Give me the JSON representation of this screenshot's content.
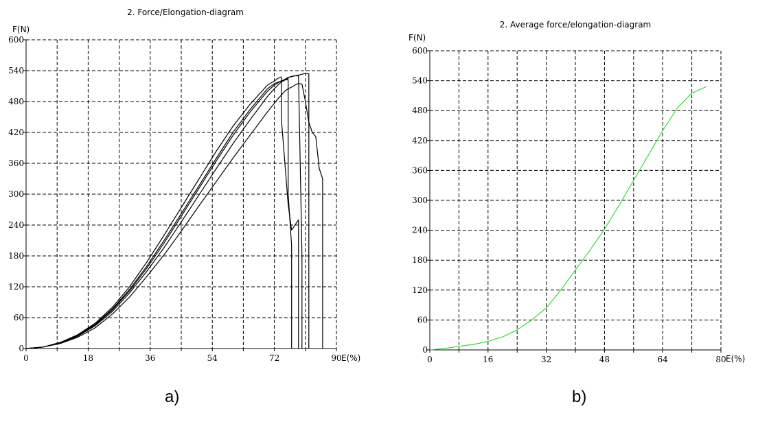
{
  "panels": {
    "a_label": "a)",
    "b_label": "b)"
  },
  "chart_data": [
    {
      "type": "line",
      "title": "2.  Force/Elongation-diagram",
      "xlabel": "E(%)",
      "ylabel": "F(N)",
      "xlim": [
        0,
        90
      ],
      "ylim": [
        0,
        600
      ],
      "xticks": [
        0,
        18,
        36,
        54,
        72,
        90
      ],
      "yticks": [
        0,
        60,
        120,
        180,
        240,
        300,
        360,
        420,
        480,
        540,
        600
      ],
      "grid": true,
      "line_color": "#000000",
      "series": [
        {
          "x": [
            0,
            5,
            10,
            15,
            20,
            25,
            30,
            35,
            40,
            45,
            50,
            55,
            60,
            65,
            70,
            73,
            75,
            76,
            76,
            77,
            78,
            78.5,
            79,
            79,
            80,
            81,
            82,
            83,
            84,
            85,
            86,
            86,
            86
          ],
          "y": [
            0,
            3,
            10,
            22,
            40,
            67,
            100,
            140,
            182,
            228,
            276,
            323,
            370,
            415,
            460,
            485,
            500,
            505,
            505,
            508,
            512,
            514,
            515,
            515,
            514,
            480,
            440,
            420,
            412,
            350,
            330,
            290,
            0
          ]
        },
        {
          "x": [
            0,
            5,
            10,
            15,
            20,
            25,
            30,
            35,
            40,
            45,
            50,
            55,
            60,
            65,
            70,
            72,
            74,
            76,
            76,
            78,
            80,
            81,
            82,
            82,
            82
          ],
          "y": [
            0,
            3,
            11,
            24,
            44,
            72,
            108,
            150,
            196,
            246,
            297,
            348,
            398,
            445,
            490,
            505,
            518,
            525,
            527,
            530,
            533,
            535,
            534,
            180,
            0
          ]
        },
        {
          "x": [
            0,
            5,
            10,
            15,
            20,
            25,
            30,
            35,
            40,
            45,
            50,
            55,
            60,
            65,
            70,
            72,
            74,
            75,
            76,
            76,
            77,
            77
          ],
          "y": [
            0,
            3,
            12,
            26,
            47,
            77,
            115,
            160,
            210,
            262,
            315,
            368,
            420,
            465,
            505,
            515,
            520,
            522,
            523,
            300,
            200,
            0
          ]
        },
        {
          "x": [
            0,
            5,
            10,
            15,
            20,
            25,
            30,
            35,
            40,
            45,
            50,
            55,
            60,
            65,
            70,
            72,
            73,
            74,
            74,
            76,
            77,
            78,
            79,
            79
          ],
          "y": [
            0,
            3,
            12,
            27,
            49,
            80,
            120,
            168,
            220,
            274,
            328,
            382,
            432,
            475,
            512,
            520,
            525,
            528,
            450,
            280,
            230,
            240,
            250,
            0
          ]
        },
        {
          "x": [
            0,
            5,
            10,
            15,
            20,
            25,
            30,
            35,
            40,
            45,
            50,
            55,
            60,
            65,
            70,
            72,
            74,
            75,
            76,
            77,
            78,
            79,
            80,
            80
          ],
          "y": [
            0,
            3,
            11,
            25,
            46,
            75,
            112,
            156,
            205,
            257,
            310,
            363,
            414,
            460,
            500,
            512,
            520,
            523,
            527,
            529,
            530,
            530,
            180,
            0
          ]
        }
      ]
    },
    {
      "type": "line",
      "title": "2.  Average force/elongation-diagram",
      "xlabel": "E(%)",
      "ylabel": "F(N)",
      "xlim": [
        0,
        80
      ],
      "ylim": [
        0,
        600
      ],
      "xticks": [
        0,
        16,
        32,
        48,
        64,
        80
      ],
      "yticks": [
        0,
        60,
        120,
        180,
        240,
        300,
        360,
        420,
        480,
        540,
        600
      ],
      "grid": true,
      "line_color": "#33dd33",
      "series": [
        {
          "x": [
            0,
            4,
            8,
            12,
            16,
            20,
            24,
            28,
            32,
            36,
            40,
            44,
            48,
            52,
            56,
            60,
            64,
            68,
            72,
            76
          ],
          "y": [
            0,
            3,
            7,
            11,
            17,
            26,
            40,
            60,
            84,
            120,
            160,
            200,
            242,
            290,
            340,
            390,
            440,
            485,
            515,
            528
          ]
        }
      ]
    }
  ]
}
